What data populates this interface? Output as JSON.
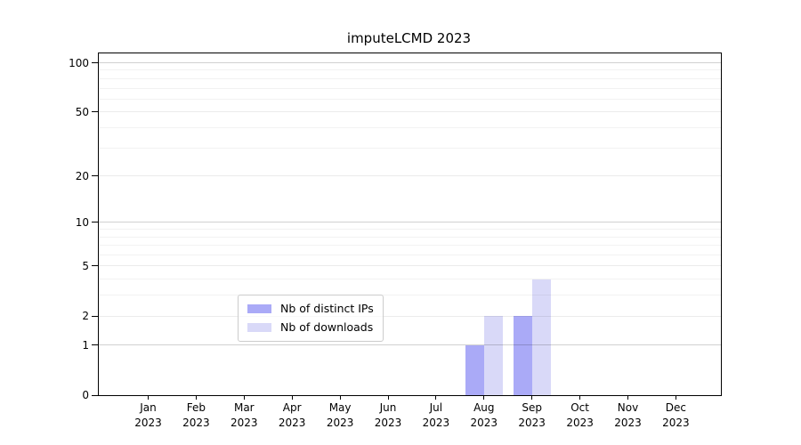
{
  "title": "imputeLCMD 2023",
  "chart_data": {
    "type": "bar",
    "title": "imputeLCMD 2023",
    "categories": [
      "Jan",
      "Feb",
      "Mar",
      "Apr",
      "May",
      "Jun",
      "Jul",
      "Aug",
      "Sep",
      "Oct",
      "Nov",
      "Dec"
    ],
    "category_year": "2023",
    "series": [
      {
        "name": "Nb of distinct IPs",
        "color": "#aaaaf7",
        "values": [
          0,
          0,
          0,
          0,
          0,
          0,
          0,
          1,
          2,
          0,
          0,
          0
        ]
      },
      {
        "name": "Nb of downloads",
        "color": "#d9d9f8",
        "values": [
          0,
          0,
          0,
          0,
          0,
          0,
          0,
          2,
          4,
          0,
          0,
          0
        ]
      }
    ],
    "xlabel": "",
    "ylabel": "",
    "y_scale": "log1p",
    "ylim": [
      0,
      114
    ],
    "yticks": [
      0,
      1,
      2,
      5,
      10,
      20,
      50,
      100
    ],
    "major_gridlines": [
      1,
      10,
      100
    ],
    "mid_gridlines": [
      2,
      5,
      20,
      50
    ],
    "minor_gridlines": [
      3,
      4,
      6,
      7,
      8,
      9,
      30,
      40,
      60,
      70,
      80,
      90
    ],
    "grid": "on",
    "legend_position": "lower center",
    "frame_color": "#000000",
    "grid_major_color": "#c8c8c8",
    "grid_minor_color": "#f0f0f0"
  }
}
